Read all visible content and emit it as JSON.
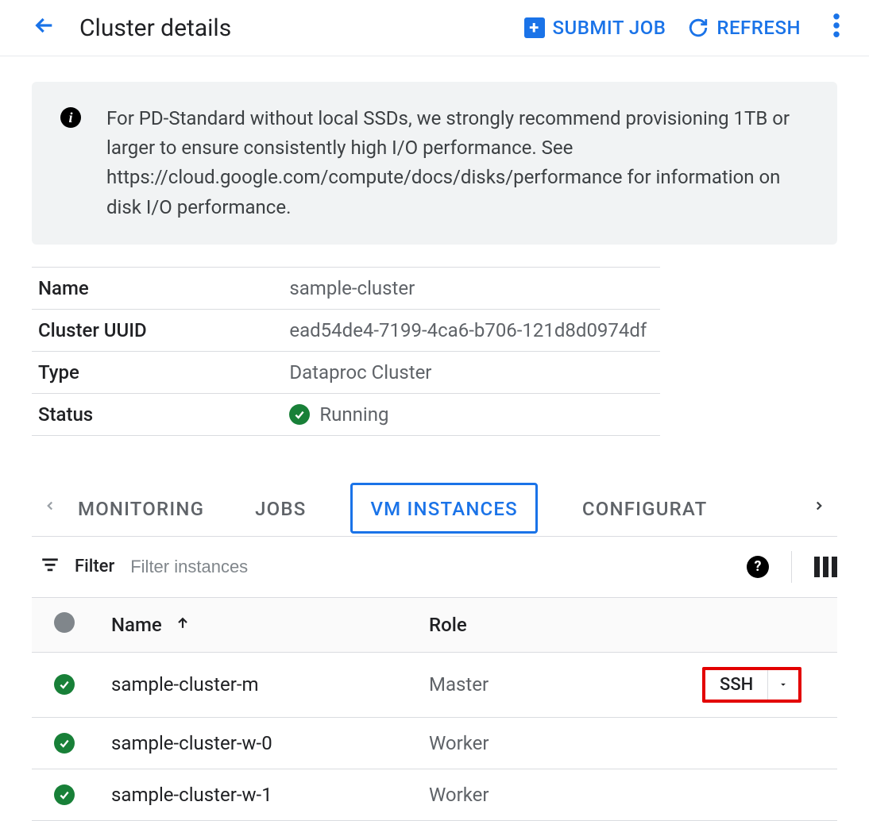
{
  "header": {
    "title": "Cluster details",
    "submit_label": "SUBMIT JOB",
    "refresh_label": "REFRESH"
  },
  "banner": {
    "text": "For PD-Standard without local SSDs, we strongly recommend provisioning 1TB or larger to ensure consistently high I/O performance. See https://cloud.google.com/compute/docs/disks/performance for information on disk I/O performance."
  },
  "details": {
    "name_label": "Name",
    "name_value": "sample-cluster",
    "uuid_label": "Cluster UUID",
    "uuid_value": "ead54de4-7199-4ca6-b706-121d8d0974df",
    "type_label": "Type",
    "type_value": "Dataproc Cluster",
    "status_label": "Status",
    "status_value": "Running"
  },
  "tabs": {
    "items": [
      "MONITORING",
      "JOBS",
      "VM INSTANCES",
      "CONFIGURAT"
    ],
    "active_index": 2
  },
  "filter": {
    "label": "Filter",
    "placeholder": "Filter instances"
  },
  "table": {
    "columns": {
      "name": "Name",
      "role": "Role"
    },
    "ssh_label": "SSH",
    "rows": [
      {
        "name": "sample-cluster-m",
        "role": "Master",
        "ssh": true
      },
      {
        "name": "sample-cluster-w-0",
        "role": "Worker",
        "ssh": false
      },
      {
        "name": "sample-cluster-w-1",
        "role": "Worker",
        "ssh": false
      }
    ]
  }
}
